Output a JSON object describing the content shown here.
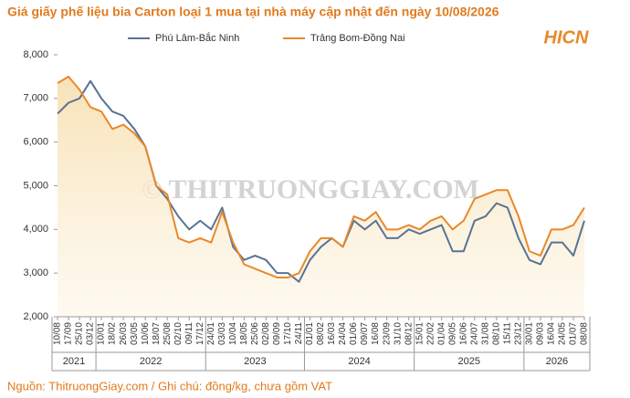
{
  "chart_data": {
    "type": "line",
    "title": "Giá giấy phế liệu bia Carton loại 1 mua tại nhà máy cập nhật đến ngày 10/08/2026",
    "logo": "HICN",
    "watermark": "© THITRUONGGIAY.COM",
    "source": "Nguồn: ThitruongGiay.com / Ghi chú: đồng/kg, chưa gồm VAT",
    "categories": [
      "10/08",
      "17/09",
      "25/10",
      "03/12",
      "10/01",
      "18/02",
      "26/03",
      "03/05",
      "10/06",
      "18/07",
      "25/08",
      "02/10",
      "09/11",
      "17/12",
      "24/01",
      "03/03",
      "10/04",
      "18/05",
      "25/06",
      "02/08",
      "09/09",
      "17/10",
      "24/11",
      "01/01",
      "08/02",
      "16/03",
      "24/04",
      "01/06",
      "09/07",
      "16/08",
      "23/09",
      "31/10",
      "08/12",
      "15/01",
      "22/02",
      "01/04",
      "09/05",
      "16/06",
      "24/07",
      "31/08",
      "08/10",
      "15/11",
      "23/12",
      "30/01",
      "09/03",
      "16/04",
      "24/05",
      "01/07",
      "08/08"
    ],
    "year_groups": [
      {
        "label": "2021",
        "span": [
          0,
          3
        ]
      },
      {
        "label": "2022",
        "span": [
          4,
          13
        ]
      },
      {
        "label": "2023",
        "span": [
          14,
          22
        ]
      },
      {
        "label": "2024",
        "span": [
          23,
          32
        ]
      },
      {
        "label": "2025",
        "span": [
          33,
          42
        ]
      },
      {
        "label": "2026",
        "span": [
          43,
          48
        ]
      }
    ],
    "series": [
      {
        "name": "Phú Lâm-Bắc Ninh",
        "color": "#5a7393",
        "values": [
          6650,
          6900,
          7000,
          7400,
          7000,
          6700,
          6600,
          6300,
          5900,
          5000,
          4700,
          4300,
          4000,
          4200,
          4000,
          4500,
          3600,
          3300,
          3400,
          3300,
          3000,
          3000,
          2800,
          3300,
          3600,
          3800,
          3600,
          4200,
          4000,
          4200,
          3800,
          3800,
          4000,
          3900,
          4000,
          4100,
          3500,
          3500,
          4200,
          4300,
          4600,
          4500,
          3800,
          3300,
          3200,
          3700,
          3700,
          3400,
          4200
        ]
      },
      {
        "name": "Trảng Bom-Đồng Nai",
        "color": "#e8892a",
        "values": [
          7350,
          7500,
          7200,
          6800,
          6700,
          6300,
          6400,
          6200,
          5900,
          5000,
          4800,
          3800,
          3700,
          3800,
          3700,
          4400,
          3700,
          3200,
          3100,
          3000,
          2900,
          2900,
          3000,
          3500,
          3800,
          3800,
          3600,
          4300,
          4200,
          4400,
          4000,
          4000,
          4100,
          4000,
          4200,
          4300,
          4000,
          4200,
          4700,
          4800,
          4900,
          4900,
          4300,
          3500,
          3400,
          4000,
          4000,
          4100,
          4500
        ]
      }
    ],
    "ylim": [
      2000,
      8000
    ],
    "yticks": [
      {
        "value": 2000,
        "label": "2,000"
      },
      {
        "value": 3000,
        "label": "3,000"
      },
      {
        "value": 4000,
        "label": "4,000"
      },
      {
        "value": 5000,
        "label": "5,000"
      },
      {
        "value": 6000,
        "label": "6,000"
      },
      {
        "value": 7000,
        "label": "7,000"
      },
      {
        "value": 8000,
        "label": "8,000"
      }
    ],
    "grid": false
  }
}
